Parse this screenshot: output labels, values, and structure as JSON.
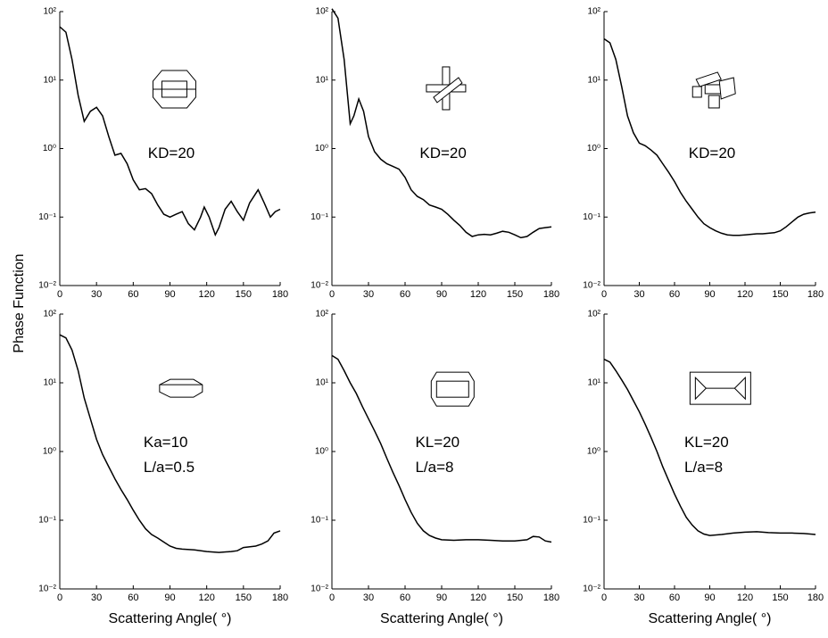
{
  "y_label": "Phase Function",
  "chart_data": [
    {
      "type": "line",
      "log_y": true,
      "annotations": [
        "KD=20"
      ],
      "x": [
        0,
        5,
        10,
        15,
        20,
        25,
        30,
        35,
        40,
        45,
        50,
        55,
        60,
        65,
        70,
        75,
        80,
        85,
        90,
        95,
        100,
        105,
        110,
        115,
        118,
        122,
        127,
        130,
        135,
        140,
        145,
        150,
        155,
        162,
        167,
        172,
        176,
        180
      ],
      "values": [
        60,
        50,
        20,
        6,
        2.5,
        3.5,
        4,
        3,
        1.5,
        0.8,
        0.85,
        0.6,
        0.35,
        0.25,
        0.26,
        0.22,
        0.15,
        0.11,
        0.1,
        0.11,
        0.12,
        0.08,
        0.065,
        0.1,
        0.14,
        0.1,
        0.055,
        0.07,
        0.13,
        0.17,
        0.12,
        0.09,
        0.16,
        0.25,
        0.16,
        0.1,
        0.12,
        0.13
      ],
      "color": "#000000",
      "xlim": [
        0,
        180
      ],
      "xticks": [
        0,
        30,
        60,
        90,
        120,
        150,
        180
      ],
      "ylim": [
        0.01,
        100
      ],
      "yticks": [
        {
          "value": 0.01,
          "label": "10⁻²"
        },
        {
          "value": 0.1,
          "label": "10⁻¹"
        },
        {
          "value": 1,
          "label": "10⁰"
        },
        {
          "value": 10,
          "label": "10¹"
        },
        {
          "value": 100,
          "label": "10²"
        }
      ]
    },
    {
      "type": "line",
      "log_y": true,
      "annotations": [
        "KD=20"
      ],
      "x": [
        0,
        5,
        10,
        15,
        18,
        22,
        26,
        30,
        35,
        40,
        45,
        50,
        55,
        60,
        65,
        70,
        75,
        80,
        85,
        90,
        95,
        100,
        105,
        110,
        115,
        120,
        125,
        130,
        135,
        140,
        145,
        150,
        155,
        160,
        165,
        170,
        175,
        180
      ],
      "values": [
        110,
        80,
        20,
        2.3,
        3,
        5.3,
        3.5,
        1.5,
        0.9,
        0.7,
        0.6,
        0.55,
        0.5,
        0.38,
        0.25,
        0.2,
        0.18,
        0.15,
        0.14,
        0.13,
        0.11,
        0.09,
        0.075,
        0.06,
        0.052,
        0.055,
        0.056,
        0.055,
        0.058,
        0.062,
        0.06,
        0.055,
        0.05,
        0.052,
        0.06,
        0.068,
        0.07,
        0.072
      ],
      "color": "#000000",
      "xlim": [
        0,
        180
      ],
      "xticks": [
        0,
        30,
        60,
        90,
        120,
        150,
        180
      ],
      "ylim": [
        0.01,
        100
      ],
      "yticks": [
        {
          "value": 0.01,
          "label": "10⁻²"
        },
        {
          "value": 0.1,
          "label": "10⁻¹"
        },
        {
          "value": 1,
          "label": "10⁰"
        },
        {
          "value": 10,
          "label": "10¹"
        },
        {
          "value": 100,
          "label": "10²"
        }
      ]
    },
    {
      "type": "line",
      "log_y": true,
      "annotations": [
        "KD=20"
      ],
      "x": [
        0,
        5,
        10,
        15,
        20,
        25,
        30,
        35,
        40,
        45,
        50,
        55,
        60,
        65,
        70,
        75,
        80,
        85,
        90,
        95,
        100,
        105,
        110,
        115,
        120,
        125,
        130,
        135,
        140,
        145,
        150,
        155,
        160,
        165,
        170,
        175,
        180
      ],
      "values": [
        40,
        35,
        20,
        8,
        3,
        1.7,
        1.2,
        1.1,
        0.95,
        0.8,
        0.6,
        0.45,
        0.33,
        0.23,
        0.17,
        0.13,
        0.1,
        0.08,
        0.07,
        0.063,
        0.058,
        0.055,
        0.054,
        0.054,
        0.055,
        0.056,
        0.057,
        0.057,
        0.058,
        0.059,
        0.063,
        0.072,
        0.085,
        0.1,
        0.11,
        0.115,
        0.118
      ],
      "color": "#000000",
      "xlim": [
        0,
        180
      ],
      "xticks": [
        0,
        30,
        60,
        90,
        120,
        150,
        180
      ],
      "ylim": [
        0.01,
        100
      ],
      "yticks": [
        {
          "value": 0.01,
          "label": "10⁻²"
        },
        {
          "value": 0.1,
          "label": "10⁻¹"
        },
        {
          "value": 1,
          "label": "10⁰"
        },
        {
          "value": 10,
          "label": "10¹"
        },
        {
          "value": 100,
          "label": "10²"
        }
      ]
    },
    {
      "type": "line",
      "log_y": true,
      "annotations": [
        "Ka=10",
        "L/a=0.5"
      ],
      "x_label": "Scattering Angle( °)",
      "x": [
        0,
        5,
        10,
        15,
        20,
        25,
        30,
        35,
        40,
        45,
        50,
        55,
        60,
        65,
        70,
        75,
        80,
        85,
        90,
        95,
        100,
        110,
        120,
        130,
        140,
        145,
        150,
        160,
        165,
        170,
        175,
        180
      ],
      "values": [
        50,
        45,
        30,
        15,
        6,
        3,
        1.5,
        0.9,
        0.6,
        0.4,
        0.28,
        0.2,
        0.14,
        0.1,
        0.075,
        0.062,
        0.055,
        0.048,
        0.042,
        0.039,
        0.038,
        0.037,
        0.035,
        0.034,
        0.035,
        0.036,
        0.04,
        0.042,
        0.045,
        0.05,
        0.065,
        0.07
      ],
      "color": "#000000",
      "xlim": [
        0,
        180
      ],
      "xticks": [
        0,
        30,
        60,
        90,
        120,
        150,
        180
      ],
      "ylim": [
        0.01,
        100
      ],
      "yticks": [
        {
          "value": 0.01,
          "label": "10⁻²"
        },
        {
          "value": 0.1,
          "label": "10⁻¹"
        },
        {
          "value": 1,
          "label": "10⁰"
        },
        {
          "value": 10,
          "label": "10¹"
        },
        {
          "value": 100,
          "label": "10²"
        }
      ]
    },
    {
      "type": "line",
      "log_y": true,
      "annotations": [
        "KL=20",
        "L/a=8"
      ],
      "x_label": "Scattering Angle( °)",
      "x": [
        0,
        5,
        10,
        15,
        20,
        25,
        30,
        35,
        40,
        45,
        50,
        55,
        60,
        65,
        70,
        75,
        80,
        85,
        90,
        100,
        110,
        120,
        130,
        140,
        150,
        160,
        165,
        170,
        175,
        180
      ],
      "values": [
        25,
        22,
        15,
        10,
        7,
        4.5,
        3,
        2,
        1.3,
        0.8,
        0.5,
        0.32,
        0.2,
        0.13,
        0.09,
        0.07,
        0.06,
        0.055,
        0.052,
        0.051,
        0.052,
        0.052,
        0.051,
        0.05,
        0.05,
        0.052,
        0.058,
        0.057,
        0.05,
        0.048
      ],
      "color": "#000000",
      "xlim": [
        0,
        180
      ],
      "xticks": [
        0,
        30,
        60,
        90,
        120,
        150,
        180
      ],
      "ylim": [
        0.01,
        100
      ],
      "yticks": [
        {
          "value": 0.01,
          "label": "10⁻²"
        },
        {
          "value": 0.1,
          "label": "10⁻¹"
        },
        {
          "value": 1,
          "label": "10⁰"
        },
        {
          "value": 10,
          "label": "10¹"
        },
        {
          "value": 100,
          "label": "10²"
        }
      ]
    },
    {
      "type": "line",
      "log_y": true,
      "annotations": [
        "KL=20",
        "L/a=8"
      ],
      "x_label": "Scattering Angle( °)",
      "x": [
        0,
        5,
        10,
        15,
        20,
        25,
        30,
        35,
        40,
        45,
        50,
        55,
        60,
        65,
        70,
        75,
        80,
        85,
        90,
        100,
        110,
        120,
        130,
        140,
        150,
        160,
        170,
        180
      ],
      "values": [
        22,
        20,
        15,
        11,
        8,
        5.5,
        3.8,
        2.5,
        1.6,
        1,
        0.6,
        0.38,
        0.24,
        0.16,
        0.11,
        0.085,
        0.07,
        0.063,
        0.06,
        0.062,
        0.065,
        0.067,
        0.068,
        0.066,
        0.065,
        0.065,
        0.064,
        0.062
      ],
      "color": "#000000",
      "xlim": [
        0,
        180
      ],
      "xticks": [
        0,
        30,
        60,
        90,
        120,
        150,
        180
      ],
      "ylim": [
        0.01,
        100
      ],
      "yticks": [
        {
          "value": 0.01,
          "label": "10⁻²"
        },
        {
          "value": 0.1,
          "label": "10⁻¹"
        },
        {
          "value": 1,
          "label": "10⁰"
        },
        {
          "value": 10,
          "label": "10¹"
        },
        {
          "value": 100,
          "label": "10²"
        }
      ]
    }
  ]
}
